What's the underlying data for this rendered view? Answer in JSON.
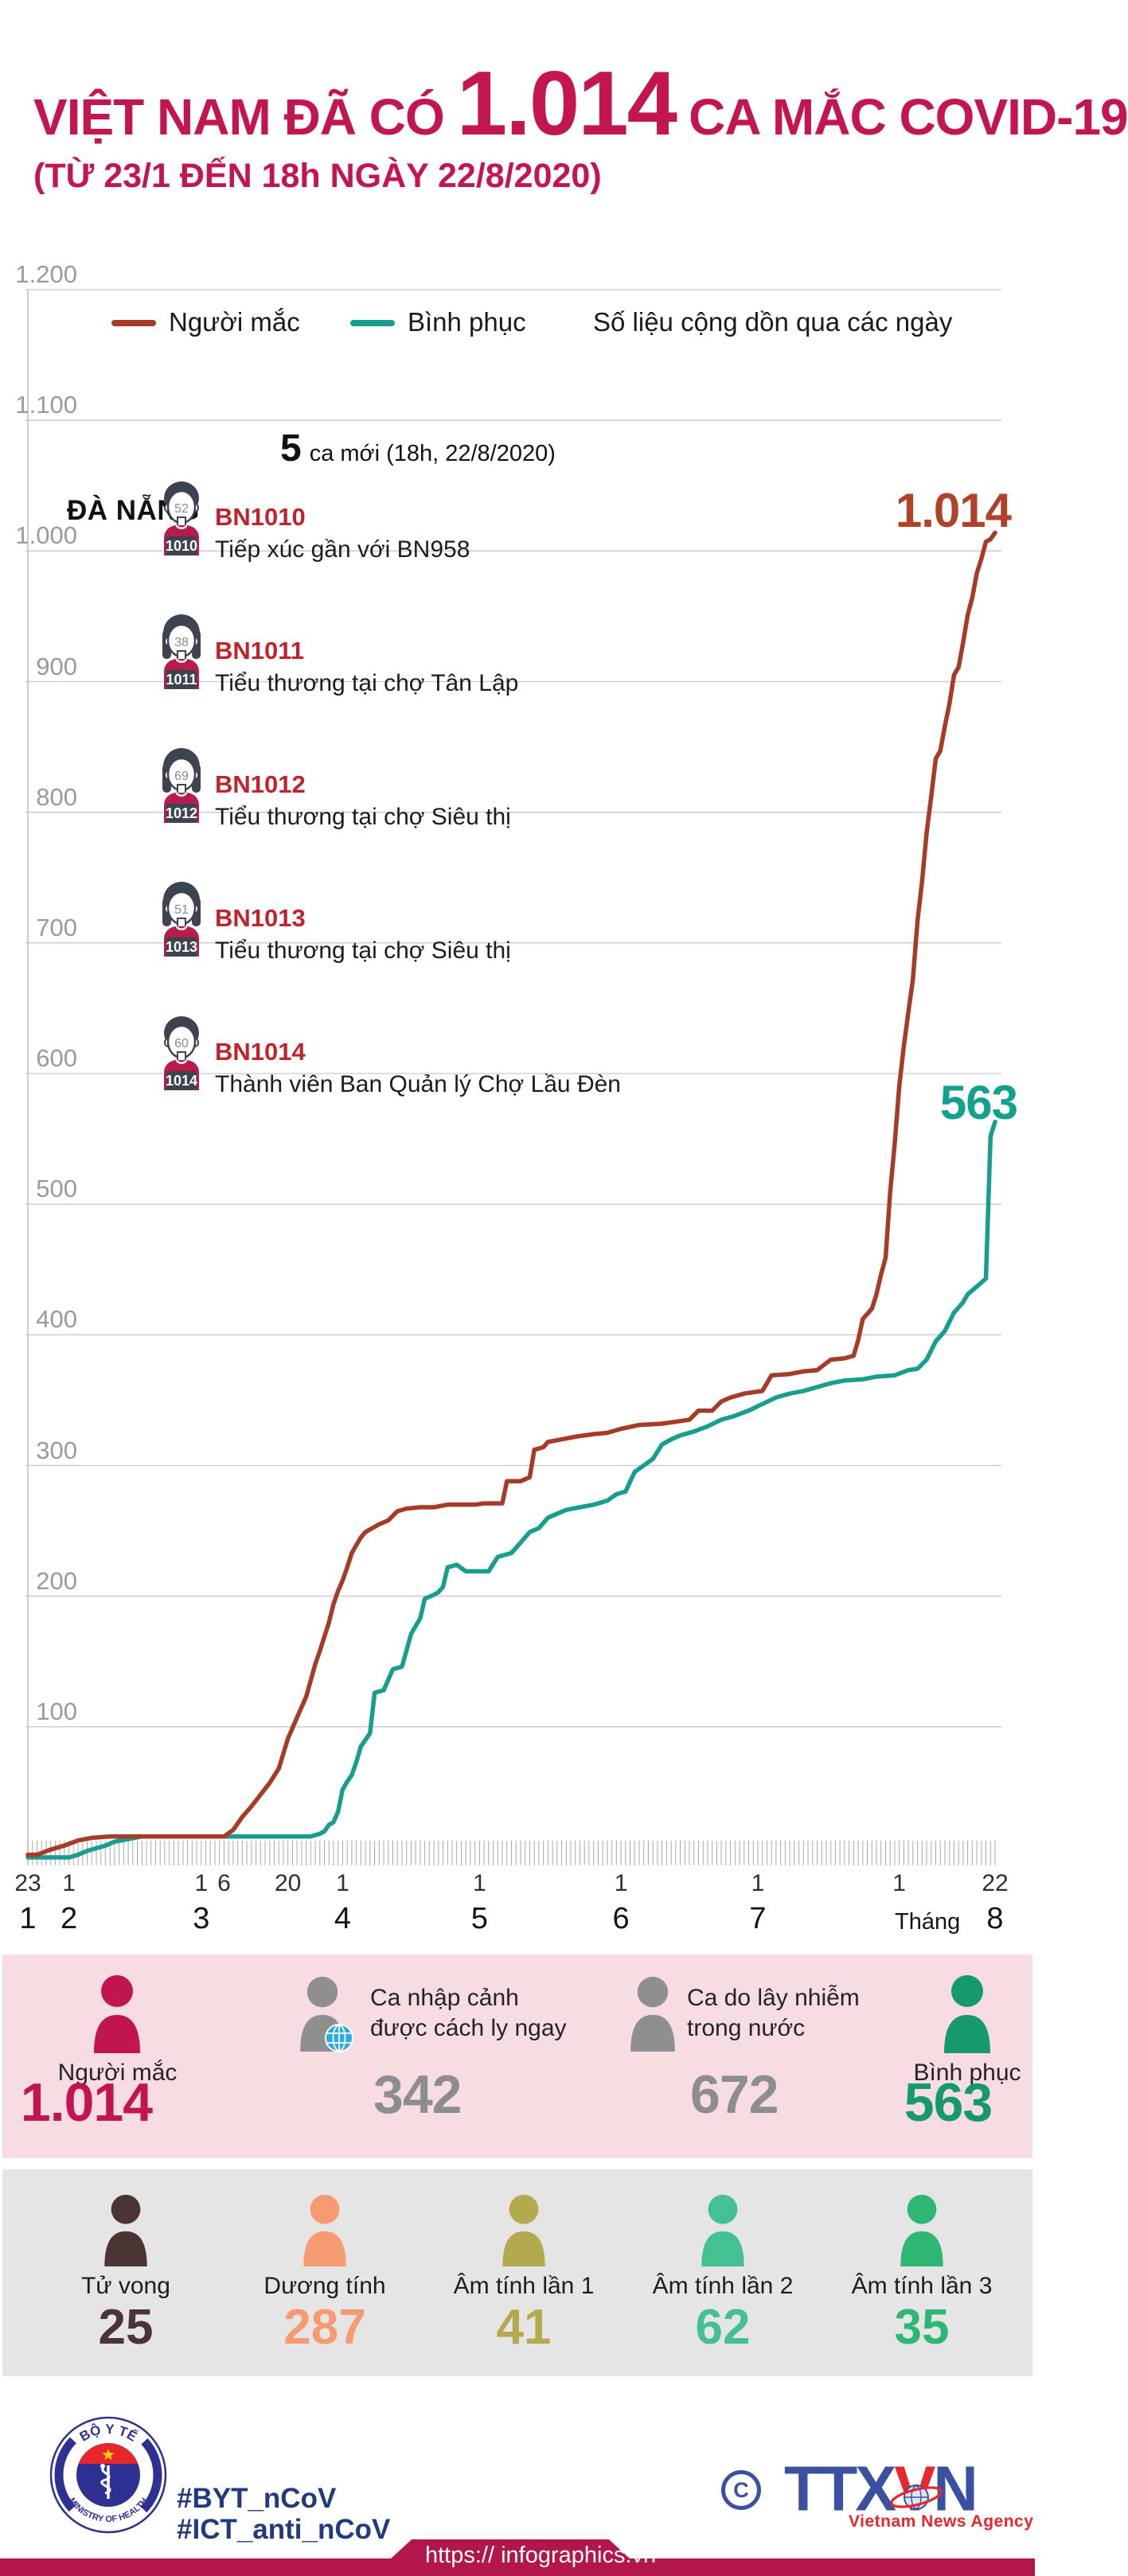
{
  "header": {
    "title_prefix": "VIỆT NAM ĐÃ CÓ",
    "title_number": "1.014",
    "title_suffix": "CA MẮC COVID-19",
    "subtitle": "(TỪ 23/1 ĐẾN 18h NGÀY 22/8/2020)"
  },
  "annotation": {
    "location": "ĐÀ NẴNG",
    "new_cases_number": "5",
    "new_cases_text": "ca mới (18h, 22/8/2020)",
    "patients": [
      {
        "id_label": "BN1010",
        "age": "52",
        "badge": "1010",
        "gender": "male",
        "desc": "Tiếp xúc gần với BN958"
      },
      {
        "id_label": "BN1011",
        "age": "38",
        "badge": "1011",
        "gender": "female",
        "desc": "Tiểu thương tại chợ Tân Lập"
      },
      {
        "id_label": "BN1012",
        "age": "69",
        "badge": "1012",
        "gender": "female",
        "desc": "Tiểu thương tại chợ Siêu thị"
      },
      {
        "id_label": "BN1013",
        "age": "51",
        "badge": "1013",
        "gender": "female",
        "desc": "Tiểu thương tại chợ Siêu thị"
      },
      {
        "id_label": "BN1014",
        "age": "60",
        "badge": "1014",
        "gender": "male",
        "desc": "Thành viên Ban Quản lý Chợ Lầu Đèn"
      }
    ]
  },
  "chart_data": {
    "type": "line",
    "title": "Việt Nam đã có 1.014 ca mắc COVID-19 (từ 23/1 đến 18h ngày 22/8/2020)",
    "note": "Số liệu cộng dồn qua các ngày",
    "ylim": [
      0,
      1200
    ],
    "grid": true,
    "legend_position": "top",
    "x_range": [
      "23/1/2020",
      "22/8/2020"
    ],
    "y_ticks": [
      {
        "v": 1200,
        "label": "1.200"
      },
      {
        "v": 1100,
        "label": "1.100"
      },
      {
        "v": 1000,
        "label": "1.000"
      },
      {
        "v": 900,
        "label": "900"
      },
      {
        "v": 800,
        "label": "800"
      },
      {
        "v": 700,
        "label": "700"
      },
      {
        "v": 600,
        "label": "600"
      },
      {
        "v": 500,
        "label": "500"
      },
      {
        "v": 400,
        "label": "400"
      },
      {
        "v": 300,
        "label": "300"
      },
      {
        "v": 200,
        "label": "200"
      },
      {
        "v": 100,
        "label": "100"
      }
    ],
    "x_axis": {
      "day_labels": [
        {
          "d": 0,
          "t": "23"
        },
        {
          "d": 9,
          "t": "1"
        },
        {
          "d": 38,
          "t": "1"
        },
        {
          "d": 43,
          "t": "6"
        },
        {
          "d": 57,
          "t": "20"
        },
        {
          "d": 69,
          "t": "1"
        },
        {
          "d": 99,
          "t": "1"
        },
        {
          "d": 130,
          "t": "1"
        },
        {
          "d": 160,
          "t": "1"
        },
        {
          "d": 191,
          "t": "1"
        },
        {
          "d": 212,
          "t": "22"
        }
      ],
      "month_labels": [
        {
          "d": 0,
          "t": "1"
        },
        {
          "d": 9,
          "t": "2"
        },
        {
          "d": 38,
          "t": "3"
        },
        {
          "d": 69,
          "t": "4"
        },
        {
          "d": 99,
          "t": "5"
        },
        {
          "d": 130,
          "t": "6"
        },
        {
          "d": 160,
          "t": "7"
        },
        {
          "d": 212,
          "t": "8"
        }
      ],
      "month_prefix": {
        "d": 197,
        "t": "Tháng"
      }
    },
    "series": [
      {
        "name": "Người mắc",
        "color": "#a63c28",
        "points": [
          [
            0,
            2
          ],
          [
            2,
            2
          ],
          [
            5,
            6
          ],
          [
            8,
            9
          ],
          [
            11,
            13
          ],
          [
            14,
            15
          ],
          [
            18,
            16
          ],
          [
            43,
            16
          ],
          [
            45,
            21
          ],
          [
            47,
            31
          ],
          [
            49,
            39
          ],
          [
            51,
            48
          ],
          [
            53,
            57
          ],
          [
            55,
            68
          ],
          [
            57,
            91
          ],
          [
            59,
            107
          ],
          [
            61,
            123
          ],
          [
            63,
            148
          ],
          [
            64,
            158
          ],
          [
            65,
            169
          ],
          [
            66,
            180
          ],
          [
            67,
            194
          ],
          [
            68,
            204
          ],
          [
            69,
            212
          ],
          [
            70,
            222
          ],
          [
            71,
            233
          ],
          [
            72,
            239
          ],
          [
            73,
            245
          ],
          [
            74,
            249
          ],
          [
            75,
            251
          ],
          [
            77,
            255
          ],
          [
            79,
            258
          ],
          [
            81,
            265
          ],
          [
            83,
            267
          ],
          [
            86,
            268
          ],
          [
            89,
            268
          ],
          [
            92,
            270
          ],
          [
            98,
            270
          ],
          [
            100,
            271
          ],
          [
            104,
            271
          ],
          [
            105,
            288
          ],
          [
            108,
            288
          ],
          [
            110,
            291
          ],
          [
            111,
            312
          ],
          [
            113,
            314
          ],
          [
            114,
            318
          ],
          [
            117,
            320
          ],
          [
            120,
            322
          ],
          [
            124,
            324
          ],
          [
            127,
            325
          ],
          [
            130,
            328
          ],
          [
            134,
            331
          ],
          [
            139,
            332
          ],
          [
            143,
            334
          ],
          [
            145,
            335
          ],
          [
            147,
            342
          ],
          [
            150,
            342
          ],
          [
            152,
            349
          ],
          [
            154,
            352
          ],
          [
            157,
            355
          ],
          [
            161,
            357
          ],
          [
            163,
            369
          ],
          [
            167,
            370
          ],
          [
            170,
            372
          ],
          [
            173,
            373
          ],
          [
            176,
            381
          ],
          [
            179,
            382
          ],
          [
            181,
            384
          ],
          [
            182,
            396
          ],
          [
            183,
            412
          ],
          [
            184,
            416
          ],
          [
            185,
            420
          ],
          [
            186,
            431
          ],
          [
            187,
            446
          ],
          [
            188,
            459
          ],
          [
            189,
            509
          ],
          [
            190,
            546
          ],
          [
            191,
            590
          ],
          [
            192,
            621
          ],
          [
            193,
            647
          ],
          [
            194,
            672
          ],
          [
            195,
            717
          ],
          [
            196,
            747
          ],
          [
            197,
            784
          ],
          [
            198,
            812
          ],
          [
            199,
            841
          ],
          [
            200,
            847
          ],
          [
            201,
            866
          ],
          [
            202,
            883
          ],
          [
            203,
            905
          ],
          [
            204,
            911
          ],
          [
            205,
            930
          ],
          [
            206,
            951
          ],
          [
            207,
            964
          ],
          [
            208,
            983
          ],
          [
            209,
            994
          ],
          [
            210,
            1007
          ],
          [
            211,
            1009
          ],
          [
            212,
            1014
          ]
        ]
      },
      {
        "name": "Bình phục",
        "color": "#179e8e",
        "points": [
          [
            0,
            0
          ],
          [
            9,
            0
          ],
          [
            11,
            2
          ],
          [
            13,
            5
          ],
          [
            15,
            7
          ],
          [
            17,
            9
          ],
          [
            19,
            12
          ],
          [
            22,
            14
          ],
          [
            25,
            16
          ],
          [
            62,
            16
          ],
          [
            64,
            18
          ],
          [
            65,
            20
          ],
          [
            66,
            25
          ],
          [
            67,
            27
          ],
          [
            68,
            35
          ],
          [
            69,
            52
          ],
          [
            70,
            58
          ],
          [
            71,
            63
          ],
          [
            72,
            73
          ],
          [
            73,
            85
          ],
          [
            74,
            90
          ],
          [
            75,
            95
          ],
          [
            76,
            126
          ],
          [
            78,
            128
          ],
          [
            80,
            144
          ],
          [
            82,
            146
          ],
          [
            84,
            171
          ],
          [
            85,
            177
          ],
          [
            86,
            183
          ],
          [
            87,
            198
          ],
          [
            89,
            201
          ],
          [
            90,
            203
          ],
          [
            91,
            207
          ],
          [
            92,
            222
          ],
          [
            94,
            224
          ],
          [
            96,
            219
          ],
          [
            101,
            219
          ],
          [
            103,
            230
          ],
          [
            106,
            233
          ],
          [
            108,
            241
          ],
          [
            110,
            249
          ],
          [
            112,
            252
          ],
          [
            114,
            260
          ],
          [
            116,
            263
          ],
          [
            118,
            266
          ],
          [
            121,
            268
          ],
          [
            124,
            270
          ],
          [
            127,
            273
          ],
          [
            129,
            278
          ],
          [
            131,
            280
          ],
          [
            133,
            295
          ],
          [
            135,
            300
          ],
          [
            137,
            305
          ],
          [
            139,
            316
          ],
          [
            141,
            320
          ],
          [
            143,
            323
          ],
          [
            146,
            326
          ],
          [
            149,
            330
          ],
          [
            152,
            335
          ],
          [
            155,
            338
          ],
          [
            158,
            342
          ],
          [
            161,
            347
          ],
          [
            164,
            352
          ],
          [
            167,
            355
          ],
          [
            170,
            357
          ],
          [
            173,
            360
          ],
          [
            176,
            363
          ],
          [
            179,
            365
          ],
          [
            183,
            366
          ],
          [
            186,
            368
          ],
          [
            190,
            369
          ],
          [
            193,
            373
          ],
          [
            195,
            374
          ],
          [
            197,
            381
          ],
          [
            199,
            395
          ],
          [
            200,
            399
          ],
          [
            201,
            403
          ],
          [
            202,
            410
          ],
          [
            203,
            417
          ],
          [
            204,
            421
          ],
          [
            205,
            425
          ],
          [
            206,
            431
          ],
          [
            207,
            434
          ],
          [
            208,
            437
          ],
          [
            209,
            440
          ],
          [
            210,
            443
          ],
          [
            211,
            552
          ],
          [
            212,
            563
          ]
        ]
      }
    ],
    "end_labels": {
      "infected": "1.014",
      "recovered": "563"
    }
  },
  "stats_row1": {
    "items": [
      {
        "label": "Người mắc",
        "value": "1.014",
        "color": "#c01550"
      },
      {
        "label_lines": [
          "Ca nhập cảnh",
          "được cách ly ngay"
        ],
        "value": "342",
        "color": "#8d8d8d",
        "icon_color": "#8f8f8f"
      },
      {
        "label_lines": [
          "Ca do lây nhiễm",
          "trong nước"
        ],
        "value": "672",
        "color": "#8d8d8d",
        "icon_color": "#8f8f8f"
      },
      {
        "label": "Bình phục",
        "value": "563",
        "color": "#159a6c"
      }
    ]
  },
  "stats_row2": {
    "items": [
      {
        "label": "Tử vong",
        "value": "25",
        "color": "#4a3534"
      },
      {
        "label": "Dương tính",
        "value": "287",
        "color": "#f59a71"
      },
      {
        "label": "Âm tính lần 1",
        "value": "41",
        "color": "#b3a94d"
      },
      {
        "label": "Âm tính lần 2",
        "value": "62",
        "color": "#43c192"
      },
      {
        "label": "Âm tính lần 3",
        "value": "35",
        "color": "#2eb673"
      }
    ]
  },
  "footer": {
    "moh_top": "BỘ Y TẾ",
    "moh_bottom": "MINISTRY OF HEALTH",
    "hashtag1": "#BYT_nCoV",
    "hashtag2": "#ICT_anti_nCoV",
    "copyright": "C",
    "agency_part1": "TTX",
    "agency_part2": "V",
    "agency_part3": "N",
    "agency_sub": "Vietnam News Agency",
    "url": "https:// infographics.vn"
  }
}
